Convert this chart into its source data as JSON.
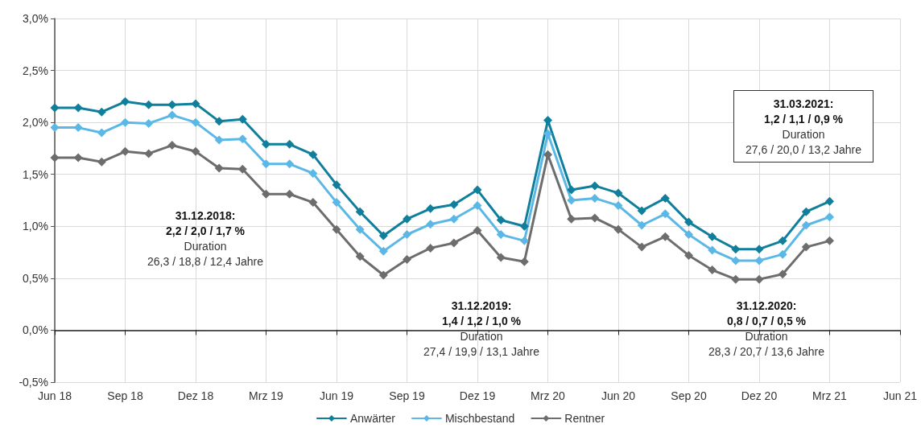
{
  "chart_data": {
    "type": "line",
    "categories": [
      "Jun 18",
      null,
      null,
      "Sep 18",
      null,
      null,
      "Dez 18",
      null,
      null,
      "Mrz 19",
      null,
      null,
      "Jun 19",
      null,
      null,
      "Sep 19",
      null,
      null,
      "Dez 19",
      null,
      null,
      "Mrz 20",
      null,
      null,
      "Jun 20",
      null,
      null,
      "Sep 20",
      null,
      null,
      "Dez 20",
      null,
      null,
      "Mrz 21",
      null,
      null,
      "Jun 21"
    ],
    "series": [
      {
        "name": "Anwärter",
        "color": "#0f7f9c",
        "values": [
          2.14,
          2.14,
          2.1,
          2.2,
          2.17,
          2.17,
          2.18,
          2.01,
          2.03,
          1.79,
          1.79,
          1.69,
          1.4,
          1.14,
          0.91,
          1.07,
          1.17,
          1.21,
          1.35,
          1.06,
          1.0,
          2.02,
          1.35,
          1.39,
          1.32,
          1.15,
          1.27,
          1.04,
          0.9,
          0.78,
          0.78,
          0.86,
          1.14,
          1.24,
          null,
          null,
          null
        ]
      },
      {
        "name": "Mischbestand",
        "color": "#5bb8e6",
        "values": [
          1.95,
          1.95,
          1.9,
          2.0,
          1.99,
          2.07,
          2.0,
          1.83,
          1.84,
          1.6,
          1.6,
          1.51,
          1.23,
          0.97,
          0.76,
          0.92,
          1.02,
          1.07,
          1.2,
          0.92,
          0.86,
          1.89,
          1.25,
          1.27,
          1.2,
          1.01,
          1.12,
          0.92,
          0.77,
          0.67,
          0.67,
          0.73,
          1.01,
          1.09,
          null,
          null,
          null
        ]
      },
      {
        "name": "Rentner",
        "color": "#6d6d6d",
        "values": [
          1.66,
          1.66,
          1.62,
          1.72,
          1.7,
          1.78,
          1.72,
          1.56,
          1.55,
          1.31,
          1.31,
          1.23,
          0.97,
          0.71,
          0.53,
          0.68,
          0.79,
          0.84,
          0.96,
          0.7,
          0.66,
          1.69,
          1.07,
          1.08,
          0.97,
          0.8,
          0.9,
          0.72,
          0.58,
          0.49,
          0.49,
          0.54,
          0.8,
          0.86,
          null,
          null,
          null
        ]
      }
    ],
    "ylim": [
      -0.5,
      3.0
    ],
    "yticks": [
      {
        "value": -0.5,
        "label": "-0,5%"
      },
      {
        "value": 0,
        "label": "0,0%"
      },
      {
        "value": 0.5,
        "label": "0,5%"
      },
      {
        "value": 1.0,
        "label": "1,0%"
      },
      {
        "value": 1.5,
        "label": "1,5%"
      },
      {
        "value": 2.0,
        "label": "2,0%"
      },
      {
        "value": 2.5,
        "label": "2,5%"
      },
      {
        "value": 3.0,
        "label": "3,0%"
      }
    ],
    "annotations": [
      "31.12.2018:\n2,2 / 2,0 / 1,7 %\nDuration\n26,3 / 18,8 / 12,4 Jahre",
      "31.12.2019:\n1,4 / 1,2 / 1,0 %\nDuration\n27,4 / 19,9 / 13,1 Jahre",
      "31.12.2020:\n0,8 / 0,7 / 0,5 %\nDuration\n28,3 / 20,7 / 13,6 Jahre",
      "31.03.2021:\n1,2 / 1,1 / 0,9 %\nDuration\n27,6 / 20,0 / 13,2 Jahre"
    ],
    "grid": true,
    "legend": "bottom",
    "marker": "diamond",
    "line_style": "solid"
  }
}
